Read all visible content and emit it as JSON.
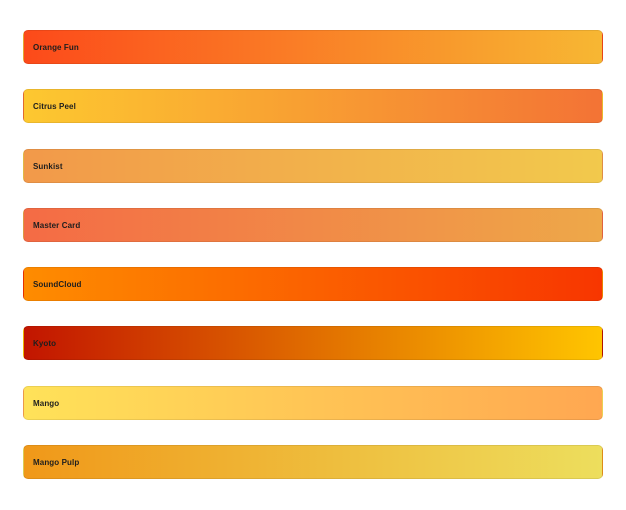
{
  "gradients": [
    {
      "label": "Orange Fun",
      "colors": [
        "#FC4A1A",
        "#F7B733"
      ]
    },
    {
      "label": "Citrus Peel",
      "colors": [
        "#FDC830",
        "#F37335"
      ]
    },
    {
      "label": "Sunkist",
      "colors": [
        "#F2994A",
        "#F2C94C"
      ]
    },
    {
      "label": "Master Card",
      "colors": [
        "#F46B45",
        "#EEA849"
      ]
    },
    {
      "label": "SoundCloud",
      "colors": [
        "#FE8C00",
        "#F83600"
      ]
    },
    {
      "label": "Kyoto",
      "colors": [
        "#C21500",
        "#FFC500"
      ]
    },
    {
      "label": "Mango",
      "colors": [
        "#FFE259",
        "#FFA751"
      ]
    },
    {
      "label": "Mango Pulp",
      "colors": [
        "#F09819",
        "#EDDE5D"
      ]
    }
  ]
}
